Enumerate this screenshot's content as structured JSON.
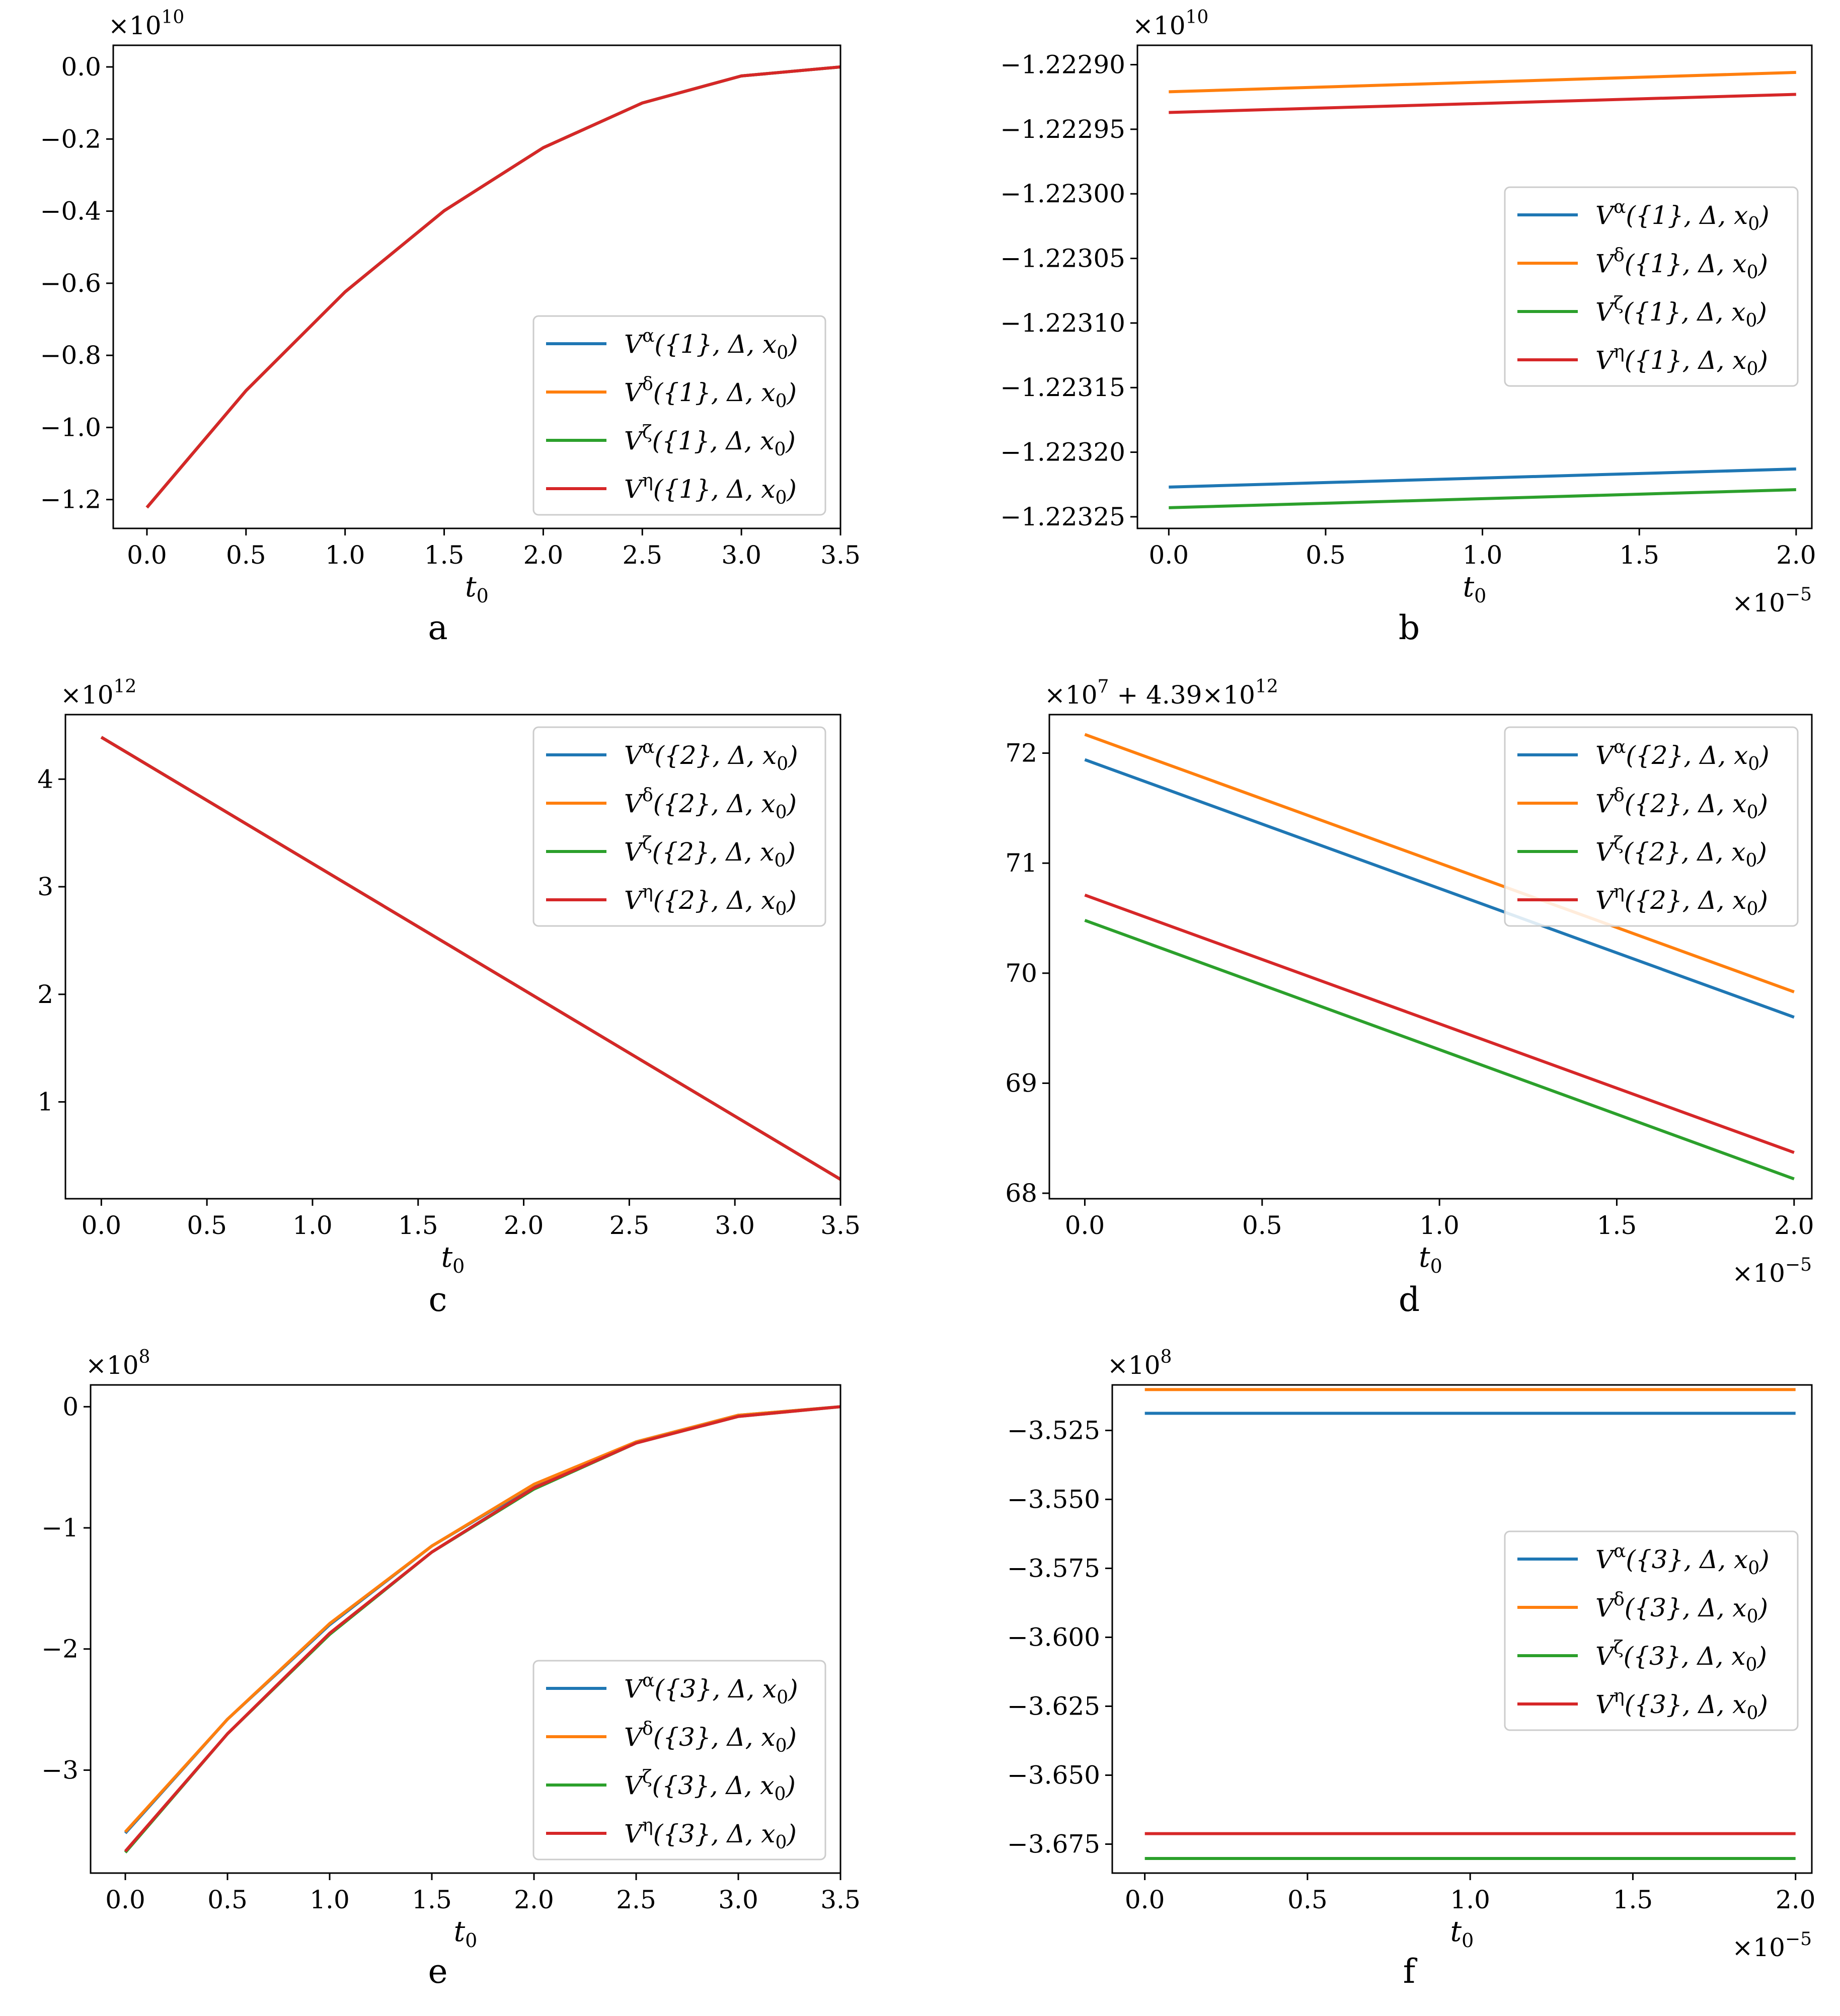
{
  "chart_data": [
    {
      "type": "line",
      "panel": "a",
      "caption": "a",
      "xlabel": "t",
      "xlabel_sub": "0",
      "ylabel": "",
      "y_offset_text": "×10^10",
      "x_offset_text": "",
      "xlim": [
        -0.17,
        3.5
      ],
      "ylim": [
        -1.28,
        0.06
      ],
      "xticks": [
        0.0,
        0.5,
        1.0,
        1.5,
        2.0,
        2.5,
        3.0,
        3.5
      ],
      "xtick_labels": [
        "0.0",
        "0.5",
        "1.0",
        "1.5",
        "2.0",
        "2.5",
        "3.0",
        "3.5"
      ],
      "yticks": [
        0.0,
        -0.2,
        -0.4,
        -0.6,
        -0.8,
        -1.0,
        -1.2
      ],
      "ytick_labels": [
        "0.0",
        "−0.2",
        "−0.4",
        "−0.6",
        "−0.8",
        "−1.0",
        "−1.2"
      ],
      "legend_position": "lower-right",
      "legend": [
        "V^α({1}, Δ, x0)",
        "V^δ({1}, Δ, x0)",
        "V^ζ({1}, Δ, x0)",
        "V^η({1}, Δ, x0)"
      ],
      "series": [
        {
          "name": "V^α({1}, Δ, x0)",
          "color": "#1f77b4",
          "x": [
            0,
            0.5,
            1.0,
            1.5,
            2.0,
            2.5,
            3.0,
            3.5
          ],
          "values": [
            -1.222,
            -0.898,
            -0.624,
            -0.399,
            -0.224,
            -0.1,
            -0.025,
            0.0
          ]
        },
        {
          "name": "V^δ({1}, Δ, x0)",
          "color": "#ff7f0e",
          "x": [
            0,
            0.5,
            1.0,
            1.5,
            2.0,
            2.5,
            3.0,
            3.5
          ],
          "values": [
            -1.222,
            -0.898,
            -0.624,
            -0.399,
            -0.224,
            -0.1,
            -0.025,
            0.0
          ]
        },
        {
          "name": "V^ζ({1}, Δ, x0)",
          "color": "#2ca02c",
          "x": [
            0,
            0.5,
            1.0,
            1.5,
            2.0,
            2.5,
            3.0,
            3.5
          ],
          "values": [
            -1.222,
            -0.898,
            -0.624,
            -0.399,
            -0.224,
            -0.1,
            -0.025,
            0.0
          ]
        },
        {
          "name": "V^η({1}, Δ, x0)",
          "color": "#d62728",
          "x": [
            0,
            0.5,
            1.0,
            1.5,
            2.0,
            2.5,
            3.0,
            3.5
          ],
          "values": [
            -1.222,
            -0.898,
            -0.624,
            -0.399,
            -0.224,
            -0.1,
            -0.025,
            0.0
          ]
        }
      ]
    },
    {
      "type": "line",
      "panel": "b",
      "caption": "b",
      "xlabel": "t",
      "xlabel_sub": "0",
      "ylabel": "",
      "y_offset_text": "×10^10",
      "x_offset_text": "×10^−5",
      "xlim": [
        -0.1,
        2.05
      ],
      "ylim": [
        -1.223259,
        -1.222885
      ],
      "xticks": [
        0.0,
        0.5,
        1.0,
        1.5,
        2.0
      ],
      "xtick_labels": [
        "0.0",
        "0.5",
        "1.0",
        "1.5",
        "2.0"
      ],
      "yticks": [
        -1.2229,
        -1.22295,
        -1.223,
        -1.22305,
        -1.2231,
        -1.22315,
        -1.2232,
        -1.22325
      ],
      "ytick_labels": [
        "−1.22290",
        "−1.22295",
        "−1.22300",
        "−1.22305",
        "−1.22310",
        "−1.22315",
        "−1.22320",
        "−1.22325"
      ],
      "legend_position": "center-right",
      "legend": [
        "V^α({1}, Δ, x0)",
        "V^δ({1}, Δ, x0)",
        "V^ζ({1}, Δ, x0)",
        "V^η({1}, Δ, x0)"
      ],
      "series": [
        {
          "name": "V^α({1}, Δ, x0)",
          "color": "#1f77b4",
          "x": [
            0.0,
            2.0
          ],
          "values": [
            -1.223227,
            -1.223213
          ]
        },
        {
          "name": "V^δ({1}, Δ, x0)",
          "color": "#ff7f0e",
          "x": [
            0.0,
            2.0
          ],
          "values": [
            -1.222921,
            -1.222906
          ]
        },
        {
          "name": "V^ζ({1}, Δ, x0)",
          "color": "#2ca02c",
          "x": [
            0.0,
            2.0
          ],
          "values": [
            -1.223243,
            -1.223229
          ]
        },
        {
          "name": "V^η({1}, Δ, x0)",
          "color": "#d62728",
          "x": [
            0.0,
            2.0
          ],
          "values": [
            -1.222937,
            -1.222923
          ]
        }
      ]
    },
    {
      "type": "line",
      "panel": "c",
      "caption": "c",
      "xlabel": "t",
      "xlabel_sub": "0",
      "ylabel": "",
      "y_offset_text": "×10^12",
      "x_offset_text": "",
      "xlim": [
        -0.17,
        3.5
      ],
      "ylim": [
        0.1,
        4.6
      ],
      "xticks": [
        0.0,
        0.5,
        1.0,
        1.5,
        2.0,
        2.5,
        3.0,
        3.5
      ],
      "xtick_labels": [
        "0.0",
        "0.5",
        "1.0",
        "1.5",
        "2.0",
        "2.5",
        "3.0",
        "3.5"
      ],
      "yticks": [
        1,
        2,
        3,
        4
      ],
      "ytick_labels": [
        "1",
        "2",
        "3",
        "4"
      ],
      "legend_position": "top-right",
      "legend": [
        "V^α({2}, Δ, x0)",
        "V^δ({2}, Δ, x0)",
        "V^ζ({2}, Δ, x0)",
        "V^η({2}, Δ, x0)"
      ],
      "series": [
        {
          "name": "V^α({2}, Δ, x0)",
          "color": "#1f77b4",
          "x": [
            0.0,
            3.5
          ],
          "values": [
            4.39,
            0.28
          ]
        },
        {
          "name": "V^δ({2}, Δ, x0)",
          "color": "#ff7f0e",
          "x": [
            0.0,
            3.5
          ],
          "values": [
            4.39,
            0.28
          ]
        },
        {
          "name": "V^ζ({2}, Δ, x0)",
          "color": "#2ca02c",
          "x": [
            0.0,
            3.5
          ],
          "values": [
            4.39,
            0.28
          ]
        },
        {
          "name": "V^η({2}, Δ, x0)",
          "color": "#d62728",
          "x": [
            0.0,
            3.5
          ],
          "values": [
            4.39,
            0.28
          ]
        }
      ]
    },
    {
      "type": "line",
      "panel": "d",
      "caption": "d",
      "xlabel": "t",
      "xlabel_sub": "0",
      "ylabel": "",
      "y_offset_text": "×10^7 + 4.39×10^12",
      "x_offset_text": "×10^−5",
      "xlim": [
        -0.1,
        2.05
      ],
      "ylim": [
        67.95,
        72.35
      ],
      "xticks": [
        0.0,
        0.5,
        1.0,
        1.5,
        2.0
      ],
      "xtick_labels": [
        "0.0",
        "0.5",
        "1.0",
        "1.5",
        "2.0"
      ],
      "yticks": [
        68,
        69,
        70,
        71,
        72
      ],
      "ytick_labels": [
        "68",
        "69",
        "70",
        "71",
        "72"
      ],
      "legend_position": "top-right",
      "legend": [
        "V^α({2}, Δ, x0)",
        "V^δ({2}, Δ, x0)",
        "V^ζ({2}, Δ, x0)",
        "V^η({2}, Δ, x0)"
      ],
      "series": [
        {
          "name": "V^α({2}, Δ, x0)",
          "color": "#1f77b4",
          "x": [
            0.0,
            2.0
          ],
          "values": [
            71.94,
            69.6
          ]
        },
        {
          "name": "V^δ({2}, Δ, x0)",
          "color": "#ff7f0e",
          "x": [
            0.0,
            2.0
          ],
          "values": [
            72.17,
            69.83
          ]
        },
        {
          "name": "V^ζ({2}, Δ, x0)",
          "color": "#2ca02c",
          "x": [
            0.0,
            2.0
          ],
          "values": [
            70.48,
            68.13
          ]
        },
        {
          "name": "V^η({2}, Δ, x0)",
          "color": "#d62728",
          "x": [
            0.0,
            2.0
          ],
          "values": [
            70.71,
            68.37
          ]
        }
      ]
    },
    {
      "type": "line",
      "panel": "e",
      "caption": "e",
      "xlabel": "t",
      "xlabel_sub": "0",
      "ylabel": "",
      "y_offset_text": "×10^8",
      "x_offset_text": "",
      "xlim": [
        -0.17,
        3.5
      ],
      "ylim": [
        -3.85,
        0.18
      ],
      "xticks": [
        0.0,
        0.5,
        1.0,
        1.5,
        2.0,
        2.5,
        3.0,
        3.5
      ],
      "xtick_labels": [
        "0.0",
        "0.5",
        "1.0",
        "1.5",
        "2.0",
        "2.5",
        "3.0",
        "3.5"
      ],
      "yticks": [
        0,
        -1,
        -2,
        -3
      ],
      "ytick_labels": [
        "0",
        "−1",
        "−2",
        "−3"
      ],
      "legend_position": "lower-right",
      "legend": [
        "V^α({3}, Δ, x0)",
        "V^δ({3}, Δ, x0)",
        "V^ζ({3}, Δ, x0)",
        "V^η({3}, Δ, x0)"
      ],
      "series": [
        {
          "name": "V^α({3}, Δ, x0)",
          "color": "#1f77b4",
          "x": [
            0,
            0.5,
            1.0,
            1.5,
            2.0,
            2.5,
            3.0,
            3.5
          ],
          "values": [
            -3.52,
            -2.58,
            -1.8,
            -1.15,
            -0.65,
            -0.29,
            -0.07,
            0.0
          ]
        },
        {
          "name": "V^δ({3}, Δ, x0)",
          "color": "#ff7f0e",
          "x": [
            0,
            0.5,
            1.0,
            1.5,
            2.0,
            2.5,
            3.0,
            3.5
          ],
          "values": [
            -3.51,
            -2.58,
            -1.79,
            -1.15,
            -0.64,
            -0.29,
            -0.07,
            0.0
          ]
        },
        {
          "name": "V^ζ({3}, Δ, x0)",
          "color": "#2ca02c",
          "x": [
            0,
            0.5,
            1.0,
            1.5,
            2.0,
            2.5,
            3.0,
            3.5
          ],
          "values": [
            -3.68,
            -2.7,
            -1.88,
            -1.2,
            -0.68,
            -0.3,
            -0.08,
            0.0
          ]
        },
        {
          "name": "V^η({3}, Δ, x0)",
          "color": "#d62728",
          "x": [
            0,
            0.5,
            1.0,
            1.5,
            2.0,
            2.5,
            3.0,
            3.5
          ],
          "values": [
            -3.67,
            -2.7,
            -1.87,
            -1.2,
            -0.67,
            -0.3,
            -0.08,
            0.0
          ]
        }
      ]
    },
    {
      "type": "line",
      "panel": "f",
      "caption": "f",
      "xlabel": "t",
      "xlabel_sub": "0",
      "ylabel": "",
      "y_offset_text": "×10^8",
      "x_offset_text": "×10^−5",
      "xlim": [
        -0.1,
        2.05
      ],
      "ylim": [
        -3.6855,
        -3.5085
      ],
      "xticks": [
        0.0,
        0.5,
        1.0,
        1.5,
        2.0
      ],
      "xtick_labels": [
        "0.0",
        "0.5",
        "1.0",
        "1.5",
        "2.0"
      ],
      "yticks": [
        -3.525,
        -3.55,
        -3.575,
        -3.6,
        -3.625,
        -3.65,
        -3.675
      ],
      "ytick_labels": [
        "−3.525",
        "−3.550",
        "−3.575",
        "−3.600",
        "−3.625",
        "−3.650",
        "−3.675"
      ],
      "legend_position": "center-right",
      "legend": [
        "V^α({3}, Δ, x0)",
        "V^δ({3}, Δ, x0)",
        "V^ζ({3}, Δ, x0)",
        "V^η({3}, Δ, x0)"
      ],
      "series": [
        {
          "name": "V^α({3}, Δ, x0)",
          "color": "#1f77b4",
          "x": [
            0.0,
            2.0
          ],
          "values": [
            -3.5188,
            -3.5188
          ]
        },
        {
          "name": "V^δ({3}, Δ, x0)",
          "color": "#ff7f0e",
          "x": [
            0.0,
            2.0
          ],
          "values": [
            -3.5102,
            -3.5102
          ]
        },
        {
          "name": "V^ζ({3}, Δ, x0)",
          "color": "#2ca02c",
          "x": [
            0.0,
            2.0
          ],
          "values": [
            -3.6802,
            -3.6802
          ]
        },
        {
          "name": "V^η({3}, Δ, x0)",
          "color": "#d62728",
          "x": [
            0.0,
            2.0
          ],
          "values": [
            -3.6712,
            -3.6712
          ]
        }
      ]
    }
  ]
}
